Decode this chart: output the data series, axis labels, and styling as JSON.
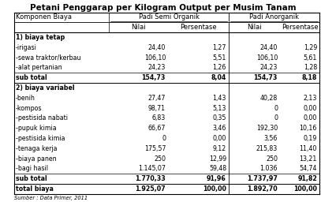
{
  "title": "Petani Penggarap per Kilogram Output per Musim Tanam",
  "col_headers": [
    "Komponen Biaya",
    "Nilai",
    "Persentase",
    "Nilai",
    "Persentase"
  ],
  "rows": [
    [
      "1) biaya tetap",
      "",
      "",
      "",
      ""
    ],
    [
      "-irigasi",
      "24,40",
      "1,27",
      "24,40",
      "1,29"
    ],
    [
      "-sewa traktor/kerbau",
      "106,10",
      "5,51",
      "106,10",
      "5,61"
    ],
    [
      "-alat pertanian",
      "24,23",
      "1,26",
      "24,23",
      "1,28"
    ],
    [
      "sub total",
      "154,73",
      "8,04",
      "154,73",
      "8,18"
    ],
    [
      "2) biaya variabel",
      "",
      "",
      "",
      ""
    ],
    [
      "-benih",
      "27,47",
      "1,43",
      "40,28",
      "2,13"
    ],
    [
      "-kompos",
      "98,71",
      "5,13",
      "0",
      "0,00"
    ],
    [
      "-pestisida nabati",
      "6,83",
      "0,35",
      "0",
      "0,00"
    ],
    [
      "-pupuk kimia",
      "66,67",
      "3,46",
      "192,30",
      "10,16"
    ],
    [
      "-pestisida kimia",
      "0",
      "0,00",
      "3,56",
      "0,19"
    ],
    [
      "-tenaga kerja",
      "175,57",
      "9,12",
      "215,83",
      "11,40"
    ],
    [
      "-biaya panen",
      "250",
      "12,99",
      "250",
      "13,21"
    ],
    [
      "-bagi hasil",
      "1.145,07",
      "59,48",
      "1.036",
      "54,74"
    ],
    [
      "sub total",
      "1.770,33",
      "91,96",
      "1.737,97",
      "91,82"
    ],
    [
      "total biaya",
      "1.925,07",
      "100,00",
      "1.892,70",
      "100,00"
    ]
  ],
  "footer": "Sumber : Data Primer, 2011",
  "bold_rows": [
    4,
    14,
    15
  ],
  "section_rows": [
    0,
    5
  ],
  "bg_color": "#ffffff",
  "line_color": "#000000",
  "text_color": "#000000",
  "font_size": 6.0,
  "title_font_size": 7.5
}
